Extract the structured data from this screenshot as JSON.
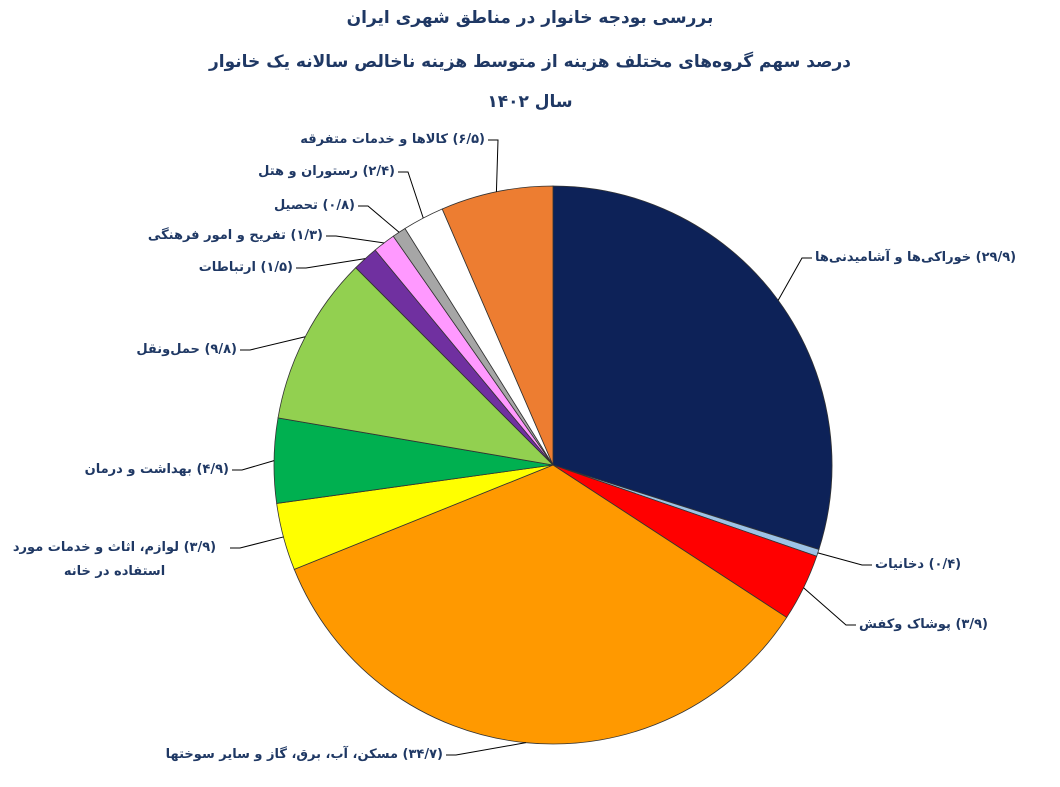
{
  "chart_data": {
    "type": "pie",
    "title": "بررسی بودجه خانوار در مناطق شهری ایران",
    "subtitle": "درصد سهم گروه‌های مختلف هزینه از متوسط هزینه ناخالص سالانه یک خانوار",
    "period": "سال ۱۴۰۲",
    "categories": [
      "خوراکی‌ها و آشامیدنی‌ها",
      "دخانیات",
      "پوشاک وکفش",
      "مسکن، آب، برق، گاز و سایر سوختها",
      "لوازم، اثاث و خدمات مورد استفاده در خانه",
      "بهداشت و درمان",
      "حمل‌ونقل",
      "ارتباطات",
      "تفریح و امور فرهنگی",
      "تحصیل",
      "رستوران و هتل",
      "کالاها و خدمات متفرقه"
    ],
    "values": [
      29.9,
      0.4,
      3.9,
      34.7,
      3.9,
      4.9,
      9.8,
      1.5,
      1.3,
      0.8,
      2.4,
      6.5
    ],
    "value_labels": [
      "(۲۹/۹)",
      "(۰/۴)",
      "(۳/۹)",
      "(۳۴/۷)",
      "(۳/۹)",
      "(۴/۹)",
      "(۹/۸)",
      "(۱/۵)",
      "(۱/۳)",
      "(۰/۸)",
      "(۲/۴)",
      "(۶/۵)"
    ],
    "colors": [
      "#0d2258",
      "#9dc3e6",
      "#ff0000",
      "#ff9900",
      "#ffff00",
      "#00b050",
      "#92d050",
      "#7030a0",
      "#ff99ff",
      "#a6a6a6",
      "#ffffff",
      "#ed7d31"
    ]
  }
}
